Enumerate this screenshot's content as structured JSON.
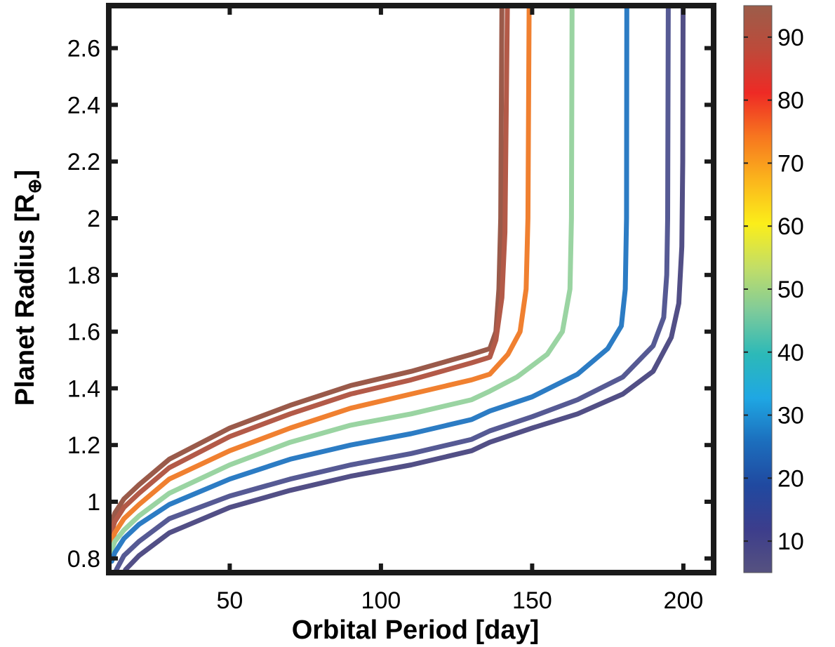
{
  "chart_data": {
    "type": "line",
    "xlabel": "Orbital Period [day]",
    "ylabel_main": "Planet Radius [R",
    "ylabel_sub": "⊕",
    "ylabel_close": "]",
    "xlim": [
      10,
      210
    ],
    "ylim": [
      0.75,
      2.75
    ],
    "xticks": [
      50,
      100,
      150,
      200
    ],
    "xtick_labels": [
      "50",
      "100",
      "150",
      "200"
    ],
    "yticks": [
      0.8,
      1,
      1.2,
      1.4,
      1.6,
      1.8,
      2,
      2.2,
      2.4,
      2.6
    ],
    "ytick_labels": [
      "0.8",
      "1",
      "1.2",
      "1.4",
      "1.6",
      "1.8",
      "2",
      "2.2",
      "2.4",
      "2.6"
    ],
    "grid": false,
    "colorbar": {
      "range": [
        5,
        95
      ],
      "ticks": [
        10,
        20,
        30,
        40,
        50,
        60,
        70,
        80,
        90
      ],
      "tick_labels": [
        "10",
        "20",
        "30",
        "40",
        "50",
        "60",
        "70",
        "80",
        "90"
      ],
      "colormap": [
        "#565280",
        "#3c3d8c",
        "#2049a0",
        "#1c6ebd",
        "#1fa7e3",
        "#2cb9b8",
        "#7fcb9a",
        "#c2de67",
        "#fbee1a",
        "#fbb51c",
        "#f7761f",
        "#ee2a25",
        "#bd4a3a",
        "#9c5d4a"
      ]
    },
    "series": [
      {
        "color": "#9a5a4a",
        "points": [
          [
            10.2,
            0.9
          ],
          [
            12,
            0.96
          ],
          [
            15,
            1.01
          ],
          [
            20,
            1.06
          ],
          [
            30,
            1.15
          ],
          [
            50,
            1.26
          ],
          [
            70,
            1.34
          ],
          [
            90,
            1.41
          ],
          [
            110,
            1.46
          ],
          [
            130,
            1.52
          ],
          [
            136,
            1.54
          ],
          [
            138,
            1.6
          ],
          [
            139,
            1.75
          ],
          [
            139.6,
            2.0
          ],
          [
            140,
            2.75
          ]
        ]
      },
      {
        "color": "#b35a48",
        "points": [
          [
            10.2,
            0.87
          ],
          [
            12,
            0.93
          ],
          [
            15,
            0.98
          ],
          [
            20,
            1.03
          ],
          [
            30,
            1.12
          ],
          [
            50,
            1.23
          ],
          [
            70,
            1.31
          ],
          [
            90,
            1.38
          ],
          [
            110,
            1.43
          ],
          [
            130,
            1.49
          ],
          [
            136,
            1.51
          ],
          [
            138,
            1.57
          ],
          [
            140,
            1.72
          ],
          [
            141,
            1.95
          ],
          [
            141.8,
            2.75
          ]
        ]
      },
      {
        "color": "#f08030",
        "points": [
          [
            10.2,
            0.84
          ],
          [
            12,
            0.89
          ],
          [
            15,
            0.94
          ],
          [
            20,
            0.99
          ],
          [
            30,
            1.08
          ],
          [
            50,
            1.18
          ],
          [
            70,
            1.26
          ],
          [
            90,
            1.33
          ],
          [
            110,
            1.38
          ],
          [
            130,
            1.43
          ],
          [
            136,
            1.45
          ],
          [
            142,
            1.52
          ],
          [
            146,
            1.6
          ],
          [
            148,
            1.75
          ],
          [
            148.6,
            2.0
          ],
          [
            149,
            2.75
          ]
        ]
      },
      {
        "color": "#9ad4a2",
        "points": [
          [
            10.2,
            0.81
          ],
          [
            12,
            0.86
          ],
          [
            15,
            0.9
          ],
          [
            20,
            0.95
          ],
          [
            30,
            1.03
          ],
          [
            50,
            1.13
          ],
          [
            70,
            1.21
          ],
          [
            90,
            1.27
          ],
          [
            110,
            1.31
          ],
          [
            130,
            1.36
          ],
          [
            136,
            1.39
          ],
          [
            145,
            1.44
          ],
          [
            155,
            1.52
          ],
          [
            160,
            1.6
          ],
          [
            162.5,
            1.75
          ],
          [
            163,
            2.0
          ],
          [
            163.2,
            2.75
          ]
        ]
      },
      {
        "color": "#2c7cc4",
        "points": [
          [
            11,
            0.79
          ],
          [
            12,
            0.82
          ],
          [
            15,
            0.87
          ],
          [
            20,
            0.92
          ],
          [
            30,
            0.99
          ],
          [
            50,
            1.08
          ],
          [
            70,
            1.15
          ],
          [
            90,
            1.2
          ],
          [
            110,
            1.24
          ],
          [
            130,
            1.29
          ],
          [
            136,
            1.32
          ],
          [
            150,
            1.37
          ],
          [
            165,
            1.45
          ],
          [
            175,
            1.54
          ],
          [
            179.5,
            1.62
          ],
          [
            180.8,
            1.75
          ],
          [
            181.2,
            2.0
          ],
          [
            181.3,
            2.75
          ]
        ]
      },
      {
        "color": "#565a94",
        "points": [
          [
            12.5,
            0.76
          ],
          [
            15,
            0.81
          ],
          [
            20,
            0.86
          ],
          [
            30,
            0.94
          ],
          [
            50,
            1.02
          ],
          [
            70,
            1.08
          ],
          [
            90,
            1.13
          ],
          [
            110,
            1.17
          ],
          [
            130,
            1.22
          ],
          [
            136,
            1.25
          ],
          [
            150,
            1.3
          ],
          [
            165,
            1.36
          ],
          [
            180,
            1.44
          ],
          [
            190,
            1.55
          ],
          [
            193.5,
            1.65
          ],
          [
            194.5,
            1.8
          ],
          [
            194.8,
            2.0
          ],
          [
            195,
            2.75
          ]
        ]
      },
      {
        "color": "#524f86",
        "points": [
          [
            15.5,
            0.76
          ],
          [
            20,
            0.81
          ],
          [
            30,
            0.89
          ],
          [
            50,
            0.98
          ],
          [
            70,
            1.04
          ],
          [
            90,
            1.09
          ],
          [
            110,
            1.13
          ],
          [
            130,
            1.18
          ],
          [
            136,
            1.21
          ],
          [
            150,
            1.26
          ],
          [
            165,
            1.31
          ],
          [
            180,
            1.38
          ],
          [
            190,
            1.46
          ],
          [
            196,
            1.58
          ],
          [
            198.5,
            1.7
          ],
          [
            199.5,
            1.9
          ],
          [
            199.8,
            2.2
          ],
          [
            199.9,
            2.75
          ]
        ]
      }
    ]
  }
}
